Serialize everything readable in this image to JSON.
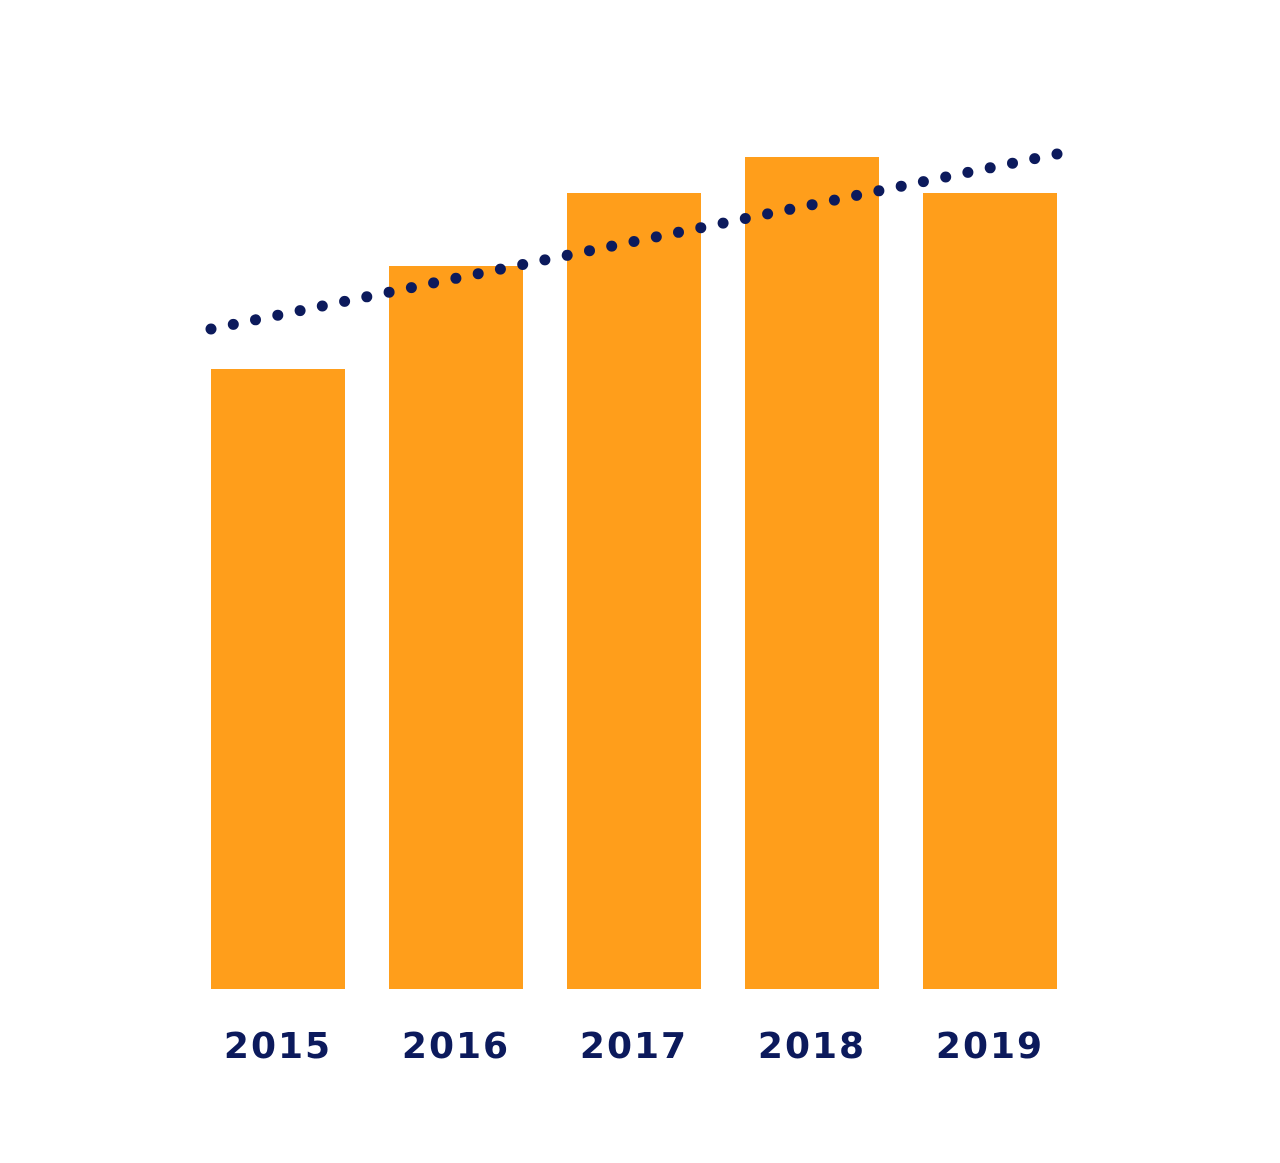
{
  "chart_data": {
    "type": "bar",
    "categories": [
      "2015",
      "2016",
      "2017",
      "2018",
      "2019"
    ],
    "values": [
      62,
      72.3,
      79.6,
      83.2,
      79.6
    ],
    "title": "",
    "xlabel": "",
    "ylabel": "",
    "ylim": [
      0,
      100
    ],
    "grid": false,
    "legend": "none",
    "trendline": {
      "style": "dotted",
      "start": 66,
      "end": 83.5
    },
    "colors": {
      "bar": "#FF9E1B",
      "trend": "#0C1A5C",
      "label": "#0C1A5C"
    }
  }
}
